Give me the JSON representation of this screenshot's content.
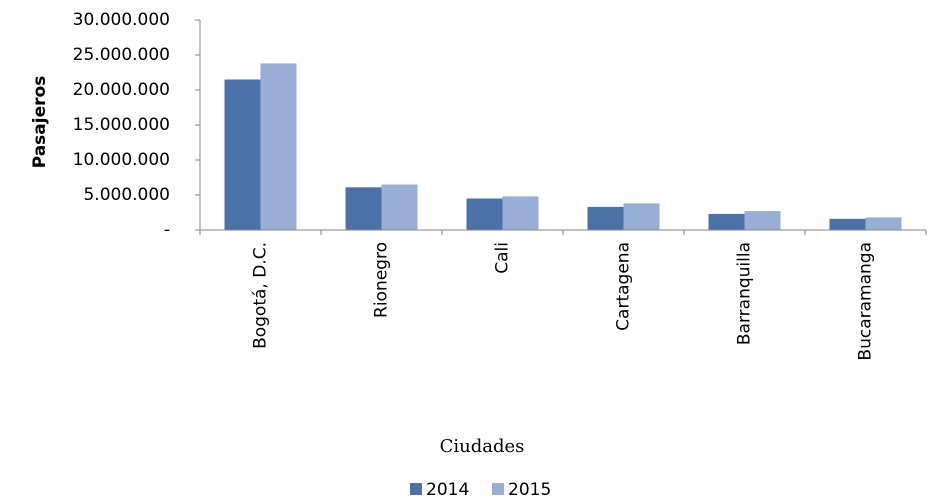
{
  "chart_data": {
    "type": "bar",
    "categories": [
      "Bogotá, D.C.",
      "Rionegro",
      "Cali",
      "Cartagena",
      "Barranquilla",
      "Bucaramanga"
    ],
    "series": [
      {
        "name": "2014",
        "values": [
          21500000,
          6100000,
          4500000,
          3300000,
          2300000,
          1600000
        ],
        "color": "#4A72A8"
      },
      {
        "name": "2015",
        "values": [
          23800000,
          6500000,
          4800000,
          3800000,
          2700000,
          1800000
        ],
        "color": "#98AED6"
      }
    ],
    "title": "",
    "xlabel": "Ciudades",
    "ylabel": "Pasajeros",
    "ylim": [
      0,
      30000000
    ],
    "yticks": [
      0,
      5000000,
      10000000,
      15000000,
      20000000,
      25000000,
      30000000
    ],
    "ytick_labels": [
      "-",
      "5.000.000",
      "10.000.000",
      "15.000.000",
      "20.000.000",
      "25.000.000",
      "30.000.000"
    ],
    "grid": false,
    "legend": "bottom"
  }
}
